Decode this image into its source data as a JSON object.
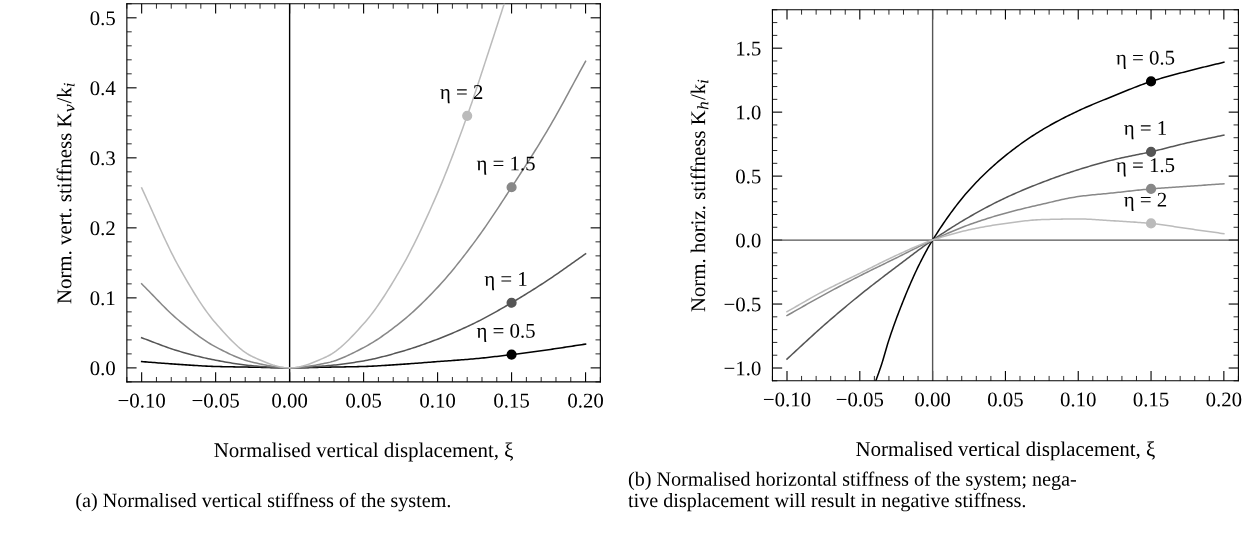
{
  "chart_data": [
    {
      "type": "line",
      "xlabel": "Normalised vertical displacement, ξ",
      "ylabel": "Norm. vert. stiffness K$_{v}$/k$_{i}$",
      "annotations": [
        "(a) Normalised vertical stiffness of the system."
      ],
      "xlim": [
        -0.11,
        0.21
      ],
      "ylim": [
        -0.02,
        0.52
      ],
      "xticks": [
        {
          "value": -0.1,
          "label": "−0.10"
        },
        {
          "value": -0.05,
          "label": "−0.05"
        },
        {
          "value": 0,
          "label": "0.00"
        },
        {
          "value": 0.05,
          "label": "0.05"
        },
        {
          "value": 0.1,
          "label": "0.10"
        },
        {
          "value": 0.15,
          "label": "0.15"
        },
        {
          "value": 0.2,
          "label": "0.20"
        }
      ],
      "yticks": [
        {
          "value": 0,
          "label": "0.0"
        },
        0.1,
        0.2,
        0.3,
        0.4,
        0.5
      ],
      "ref_lines": [
        {
          "axis": "x",
          "value": 0,
          "color": "#000000"
        }
      ],
      "series": [
        {
          "color": "#000000",
          "x": [
            -0.1,
            -0.075,
            -0.05,
            -0.025,
            0,
            0.025,
            0.05,
            0.075,
            0.1,
            0.125,
            0.15,
            0.175,
            0.2
          ],
          "values": [
            0.009,
            0.005,
            0.002,
            0.001,
            0,
            0.001,
            0.002,
            0.005,
            0.009,
            0.013,
            0.019,
            0.026,
            0.034
          ]
        },
        {
          "color": "#555555",
          "x": [
            -0.1,
            -0.075,
            -0.05,
            -0.025,
            0,
            0.025,
            0.05,
            0.075,
            0.1,
            0.125,
            0.15,
            0.175,
            0.2
          ],
          "values": [
            0.043,
            0.024,
            0.011,
            0.003,
            0,
            0.003,
            0.01,
            0.023,
            0.041,
            0.064,
            0.093,
            0.126,
            0.163
          ]
        },
        {
          "color": "#888888",
          "x": [
            -0.1,
            -0.075,
            -0.05,
            -0.025,
            0,
            0.025,
            0.05,
            0.075,
            0.1,
            0.125,
            0.15,
            0.175,
            0.2
          ],
          "values": [
            0.12,
            0.068,
            0.03,
            0.008,
            0,
            0.007,
            0.029,
            0.065,
            0.115,
            0.18,
            0.258,
            0.342,
            0.438
          ]
        },
        {
          "color": "#bbbbbb",
          "x": [
            -0.1,
            -0.075,
            -0.05,
            -0.025,
            0,
            0.025,
            0.05,
            0.075,
            0.1,
            0.12,
            0.135,
            0.145
          ],
          "values": [
            0.257,
            0.145,
            0.064,
            0.016,
            0,
            0.016,
            0.063,
            0.141,
            0.25,
            0.36,
            0.455,
            0.52
          ]
        },
        {
          "type": "scatter",
          "name": "η = 0.5",
          "color": "#000000",
          "x": [
            0.15
          ],
          "values": [
            0.019
          ]
        },
        {
          "type": "scatter",
          "name": "η = 1",
          "color": "#555555",
          "x": [
            0.15
          ],
          "values": [
            0.093
          ]
        },
        {
          "type": "scatter",
          "name": "η = 1.5",
          "color": "#888888",
          "x": [
            0.15
          ],
          "values": [
            0.258
          ]
        },
        {
          "type": "scatter",
          "name": "η = 2",
          "color": "#bbbbbb",
          "x": [
            0.12
          ],
          "values": [
            0.36
          ]
        }
      ]
    },
    {
      "type": "line",
      "xlabel": "Normalised vertical displacement, ξ",
      "ylabel": "Norm. horiz. stiffness K$_{h}$/k$_{i}$",
      "annotations": [
        "(b) Normalised horizontal stiffness of the system; nega-\ntive displacement will result in negative stiffness."
      ],
      "xlim": [
        -0.11,
        0.21
      ],
      "ylim": [
        -1.1,
        1.8
      ],
      "xticks": [
        {
          "value": -0.1,
          "label": "−0.10"
        },
        {
          "value": -0.05,
          "label": "−0.05"
        },
        {
          "value": 0,
          "label": "0.00"
        },
        {
          "value": 0.05,
          "label": "0.05"
        },
        {
          "value": 0.1,
          "label": "0.10"
        },
        {
          "value": 0.15,
          "label": "0.15"
        },
        {
          "value": 0.2,
          "label": "0.20"
        }
      ],
      "yticks": [
        {
          "value": -1,
          "label": "−1.0"
        },
        {
          "value": -0.5,
          "label": "−0.5"
        },
        {
          "value": 0,
          "label": "0.0"
        },
        0.5,
        {
          "value": 1,
          "label": "1.0"
        },
        1.5
      ],
      "ref_lines": [
        {
          "axis": "x",
          "value": 0,
          "color": "#555555"
        },
        {
          "axis": "y",
          "value": 0,
          "color": "#555555"
        }
      ],
      "series": [
        {
          "color": "#000000",
          "x": [
            -0.039,
            -0.035,
            -0.03,
            -0.02,
            -0.01,
            0,
            0.025,
            0.05,
            0.075,
            0.1,
            0.125,
            0.15,
            0.175,
            0.2
          ],
          "values": [
            -1.1,
            -0.97,
            -0.78,
            -0.47,
            -0.21,
            0,
            0.39,
            0.66,
            0.86,
            1.01,
            1.13,
            1.24,
            1.32,
            1.39
          ]
        },
        {
          "color": "#555555",
          "x": [
            -0.1,
            -0.075,
            -0.05,
            -0.025,
            0,
            0.025,
            0.05,
            0.075,
            0.1,
            0.125,
            0.15,
            0.175,
            0.2
          ],
          "values": [
            -0.93,
            -0.67,
            -0.43,
            -0.21,
            0,
            0.18,
            0.33,
            0.45,
            0.55,
            0.63,
            0.69,
            0.76,
            0.82
          ]
        },
        {
          "color": "#888888",
          "x": [
            -0.1,
            -0.075,
            -0.05,
            -0.025,
            0,
            0.025,
            0.05,
            0.075,
            0.1,
            0.125,
            0.15,
            0.175,
            0.2
          ],
          "values": [
            -0.59,
            -0.43,
            -0.28,
            -0.14,
            0,
            0.12,
            0.21,
            0.28,
            0.34,
            0.37,
            0.4,
            0.42,
            0.44
          ]
        },
        {
          "color": "#bbbbbb",
          "x": [
            -0.1,
            -0.075,
            -0.05,
            -0.025,
            0,
            0.025,
            0.05,
            0.075,
            0.1,
            0.125,
            0.15,
            0.175,
            0.2
          ],
          "values": [
            -0.56,
            -0.4,
            -0.26,
            -0.12,
            0,
            0.08,
            0.13,
            0.16,
            0.165,
            0.15,
            0.13,
            0.09,
            0.05
          ]
        },
        {
          "type": "scatter",
          "name": "η = 0.5",
          "color": "#000000",
          "x": [
            0.15
          ],
          "values": [
            1.24
          ]
        },
        {
          "type": "scatter",
          "name": "η = 1",
          "color": "#555555",
          "x": [
            0.15
          ],
          "values": [
            0.69
          ]
        },
        {
          "type": "scatter",
          "name": "η = 1.5",
          "color": "#888888",
          "x": [
            0.15
          ],
          "values": [
            0.4
          ]
        },
        {
          "type": "scatter",
          "name": "η = 2",
          "color": "#bbbbbb",
          "x": [
            0.15
          ],
          "values": [
            0.13
          ]
        }
      ]
    }
  ]
}
